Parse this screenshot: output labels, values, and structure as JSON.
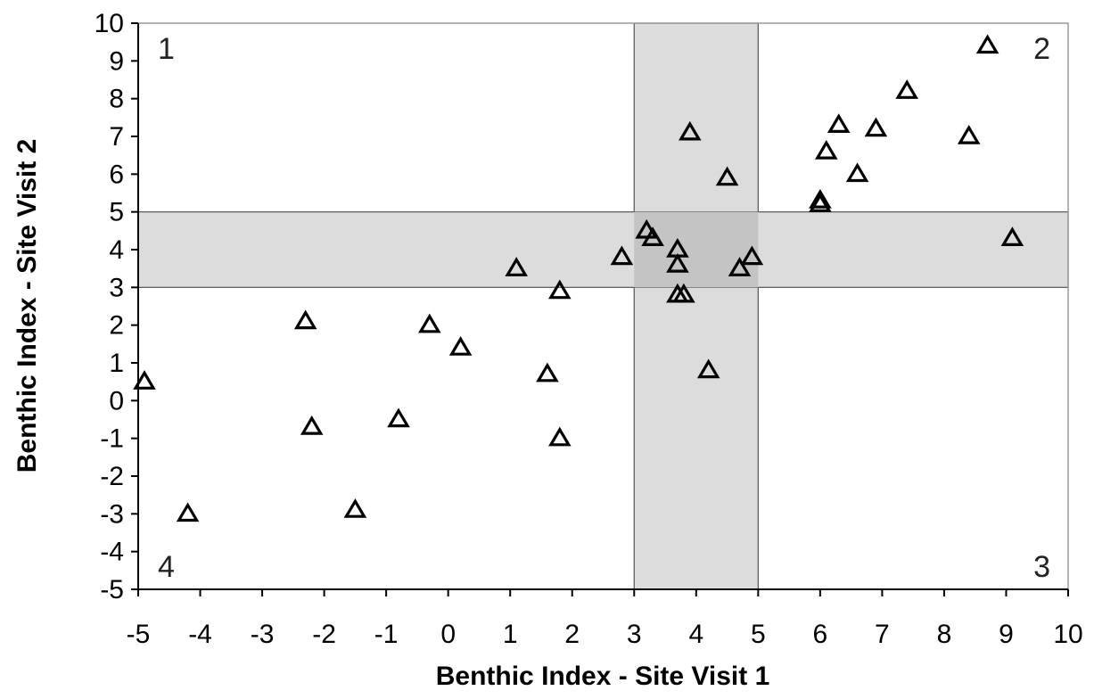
{
  "chart_data": {
    "type": "scatter",
    "xlabel": "Benthic Index - Site Visit 1",
    "ylabel": "Benthic Index - Site Visit 2",
    "xlim": [
      -5,
      10
    ],
    "ylim": [
      -5,
      10
    ],
    "xticks": [
      -5,
      -4,
      -3,
      -2,
      -1,
      0,
      1,
      2,
      3,
      4,
      5,
      6,
      7,
      8,
      9,
      10
    ],
    "yticks": [
      -5,
      -4,
      -3,
      -2,
      -1,
      0,
      1,
      2,
      3,
      4,
      5,
      6,
      7,
      8,
      9,
      10
    ],
    "grid": false,
    "marker": "triangle-open",
    "bands": {
      "vertical": [
        3,
        5
      ],
      "horizontal": [
        3,
        5
      ],
      "color": "#dcdcdc",
      "overlap_color": "#c4c4c4"
    },
    "quadrant_labels": [
      {
        "text": "1",
        "position": "top-left"
      },
      {
        "text": "2",
        "position": "top-right"
      },
      {
        "text": "3",
        "position": "bottom-right"
      },
      {
        "text": "4",
        "position": "bottom-left"
      }
    ],
    "series": [
      {
        "points": [
          {
            "x": -4.9,
            "y": 0.5
          },
          {
            "x": -4.2,
            "y": -3.0
          },
          {
            "x": -2.3,
            "y": 2.1
          },
          {
            "x": -2.2,
            "y": -0.7
          },
          {
            "x": -1.5,
            "y": -2.9
          },
          {
            "x": -0.8,
            "y": -0.5
          },
          {
            "x": -0.3,
            "y": 2.0
          },
          {
            "x": 0.2,
            "y": 1.4
          },
          {
            "x": 1.1,
            "y": 3.5
          },
          {
            "x": 1.6,
            "y": 0.7
          },
          {
            "x": 1.8,
            "y": -1.0
          },
          {
            "x": 1.8,
            "y": 2.9
          },
          {
            "x": 2.8,
            "y": 3.8
          },
          {
            "x": 3.2,
            "y": 4.5
          },
          {
            "x": 3.3,
            "y": 4.3
          },
          {
            "x": 3.7,
            "y": 4.0
          },
          {
            "x": 3.7,
            "y": 3.6
          },
          {
            "x": 3.7,
            "y": 2.8
          },
          {
            "x": 3.8,
            "y": 2.8
          },
          {
            "x": 3.9,
            "y": 7.1
          },
          {
            "x": 4.2,
            "y": 0.8
          },
          {
            "x": 4.5,
            "y": 5.9
          },
          {
            "x": 4.7,
            "y": 3.5
          },
          {
            "x": 4.9,
            "y": 3.8
          },
          {
            "x": 6.0,
            "y": 5.2
          },
          {
            "x": 6.0,
            "y": 5.3
          },
          {
            "x": 6.1,
            "y": 6.6
          },
          {
            "x": 6.3,
            "y": 7.3
          },
          {
            "x": 6.6,
            "y": 6.0
          },
          {
            "x": 6.9,
            "y": 7.2
          },
          {
            "x": 7.4,
            "y": 8.2
          },
          {
            "x": 8.4,
            "y": 7.0
          },
          {
            "x": 8.7,
            "y": 9.4
          },
          {
            "x": 9.1,
            "y": 4.3
          }
        ]
      }
    ]
  }
}
